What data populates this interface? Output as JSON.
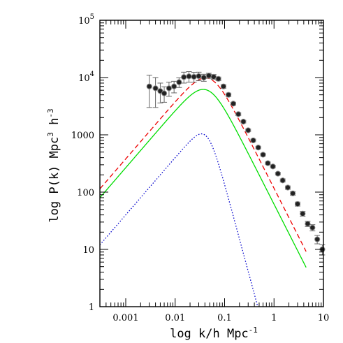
{
  "chart_data": {
    "type": "scatter",
    "xlabel_main": "log k/h Mpc",
    "xlabel_sup": "-1",
    "ylabel_main": "log P(k) Mpc",
    "ylabel_sup1": "3",
    "ylabel_mid": " h",
    "ylabel_sup2": "-3",
    "xscale": "log",
    "yscale": "log",
    "xlim": [
      0.0003,
      10
    ],
    "ylim": [
      1,
      100000
    ],
    "grid": false,
    "x_ticks": [
      {
        "value": 0.001,
        "label": "0.001"
      },
      {
        "value": 0.01,
        "label": "0.01"
      },
      {
        "value": 0.1,
        "label": "0.1"
      },
      {
        "value": 1,
        "label": "1"
      },
      {
        "value": 10,
        "label": "10"
      }
    ],
    "y_ticks": [
      {
        "value": 1,
        "label": "1"
      },
      {
        "value": 10,
        "label": "10"
      },
      {
        "value": 100,
        "label": "100"
      },
      {
        "value": 1000,
        "label": "1000"
      },
      {
        "value": 10000,
        "label": "10",
        "sup": "4"
      },
      {
        "value": 100000,
        "label": "10",
        "sup": "5"
      }
    ],
    "points": {
      "x": [
        0.003,
        0.004,
        0.005,
        0.006,
        0.0075,
        0.0095,
        0.012,
        0.015,
        0.019,
        0.024,
        0.03,
        0.038,
        0.048,
        0.06,
        0.075,
        0.095,
        0.12,
        0.15,
        0.19,
        0.24,
        0.3,
        0.38,
        0.48,
        0.6,
        0.75,
        0.95,
        1.2,
        1.5,
        1.9,
        2.4,
        3.0,
        3.8,
        4.8,
        6.0,
        7.5,
        9.5
      ],
      "y": [
        7000,
        6500,
        5800,
        5300,
        6500,
        7000,
        8300,
        10200,
        10500,
        10300,
        10600,
        10000,
        10800,
        10300,
        9500,
        7000,
        5000,
        3500,
        2300,
        1700,
        1200,
        800,
        600,
        450,
        320,
        280,
        210,
        160,
        120,
        95,
        62,
        42,
        28,
        24,
        15,
        10
      ],
      "err": [
        4000,
        3500,
        2200,
        1600,
        1800,
        1600,
        1600,
        2200,
        2200,
        2000,
        1800,
        1400,
        1100,
        1000,
        700,
        500,
        350,
        200,
        130,
        90,
        60,
        40,
        30,
        22,
        16,
        14,
        11,
        10,
        8,
        7,
        5,
        4,
        3,
        3,
        2.5,
        2
      ],
      "color": "#000000"
    },
    "series": [
      {
        "style": "dashed",
        "color": "#ee0000",
        "amplitude": 9500,
        "k_peak": 0.05
      },
      {
        "style": "solid",
        "color": "#00dd00",
        "amplitude": 6000,
        "k_peak": 0.045
      },
      {
        "style": "dotted",
        "color": "#0000cc",
        "amplitude": 900,
        "k_peak": 0.045,
        "hi_slope": -3.2
      }
    ]
  }
}
